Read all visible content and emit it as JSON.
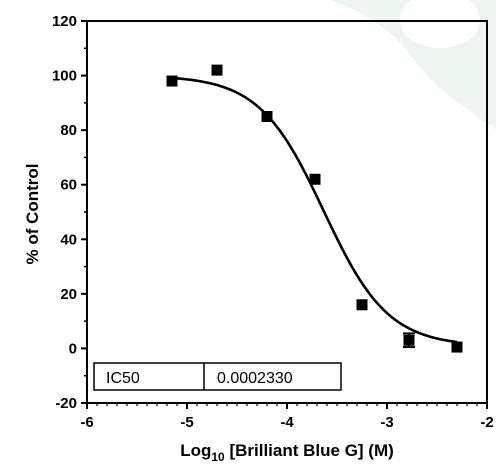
{
  "chart_data": {
    "type": "scatter",
    "xlabel_prefix": "Log",
    "xlabel_sub": "10",
    "xlabel_rest": " [Brilliant Blue G] (M)",
    "ylabel": "% of Control",
    "xlim": [
      -6,
      -2
    ],
    "ylim": [
      -20,
      120
    ],
    "xticks": [
      -6,
      -5,
      -4,
      -3,
      -2
    ],
    "yticks": [
      -20,
      0,
      20,
      40,
      60,
      80,
      100,
      120
    ],
    "grid": false,
    "series": [
      {
        "x": [
          -5.15,
          -4.7,
          -4.2,
          -3.72,
          -3.25,
          -2.78,
          -2.3
        ],
        "y": [
          98,
          102,
          85,
          62,
          16,
          3,
          0.5
        ],
        "error": [
          0,
          0,
          0,
          0,
          0,
          2.5,
          0
        ]
      }
    ],
    "fit": {
      "model": "sigmoidal dose-response",
      "top": 100,
      "bottom": 0.8,
      "log_ic50": -3.633,
      "hill_slope": -1.35
    },
    "table": {
      "label": "IC50",
      "value": "0.0002330"
    }
  },
  "colors": {
    "marks": "#000000",
    "background": "#ffffff",
    "decor": "#e9f2ee"
  }
}
